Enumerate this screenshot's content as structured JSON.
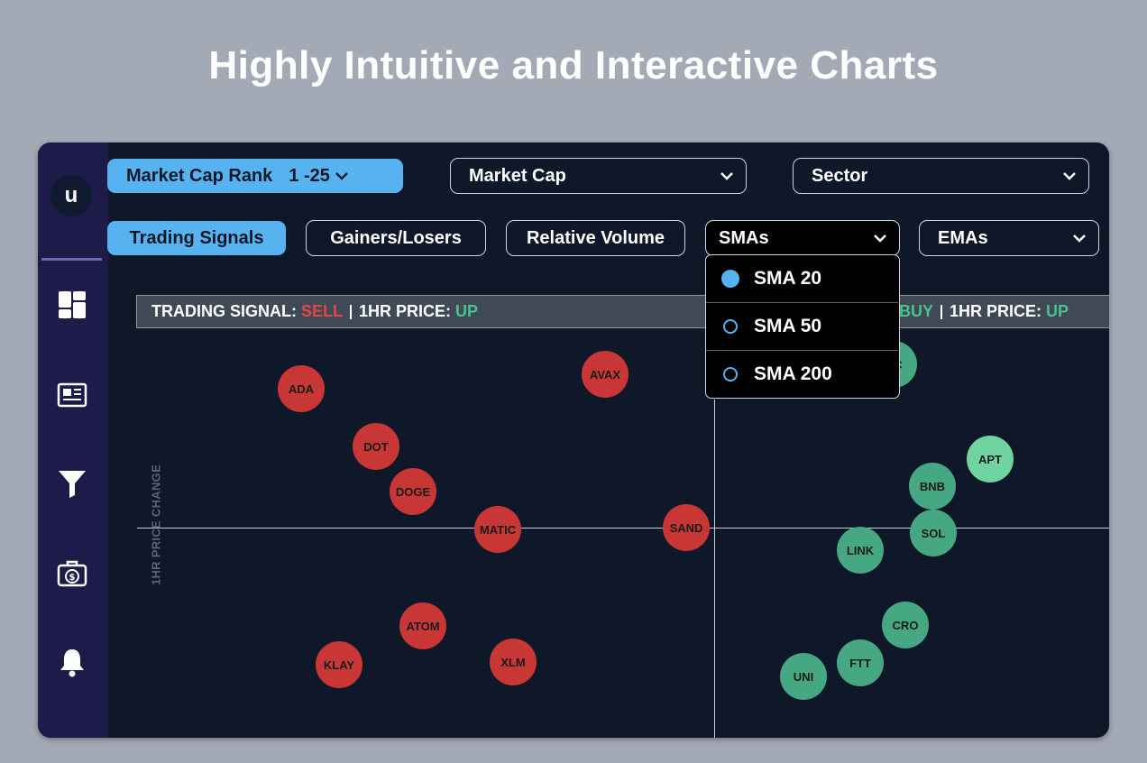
{
  "headline": "Highly Intuitive and Interactive Charts",
  "logo": {
    "text": "u"
  },
  "filters": {
    "rank": {
      "label": "Market Cap Rank",
      "value": "1 -25"
    },
    "market_cap": {
      "label": "Market Cap"
    },
    "sector": {
      "label": "Sector"
    }
  },
  "tabs": {
    "trading_signals": "Trading Signals",
    "gainers_losers": "Gainers/Losers",
    "relative_volume": "Relative Volume",
    "smas": "SMAs",
    "emas": "EMAs"
  },
  "sma_menu": {
    "options": [
      "SMA 20",
      "SMA 50",
      "SMA 200"
    ],
    "selected": "SMA 20"
  },
  "signal_bar": {
    "left": {
      "signal_label": "TRADING SIGNAL:",
      "signal_value": "SELL",
      "price_label": "1HR PRICE:",
      "price_value": "UP"
    },
    "right": {
      "signal_value": "BUY",
      "price_label": "1HR PRICE:",
      "price_value": "UP"
    }
  },
  "chart": {
    "ylabel": "1HR PRICE CHANGE",
    "sell_color": "#c93636",
    "buy_color": "#46a883",
    "sell_coins": [
      "ADA",
      "AVAX",
      "DOT",
      "DOGE",
      "MATIC",
      "SAND",
      "ATOM",
      "KLAY",
      "XLM"
    ],
    "buy_coins": [
      "C",
      "APT",
      "BNB",
      "SOL",
      "LINK",
      "CRO",
      "FTT",
      "UNI"
    ]
  },
  "colors": {
    "accent": "#57b3f0",
    "sell": "#e04848",
    "up": "#46c48c",
    "sidebar": "#1c1b4a",
    "background": "#0e1829"
  }
}
